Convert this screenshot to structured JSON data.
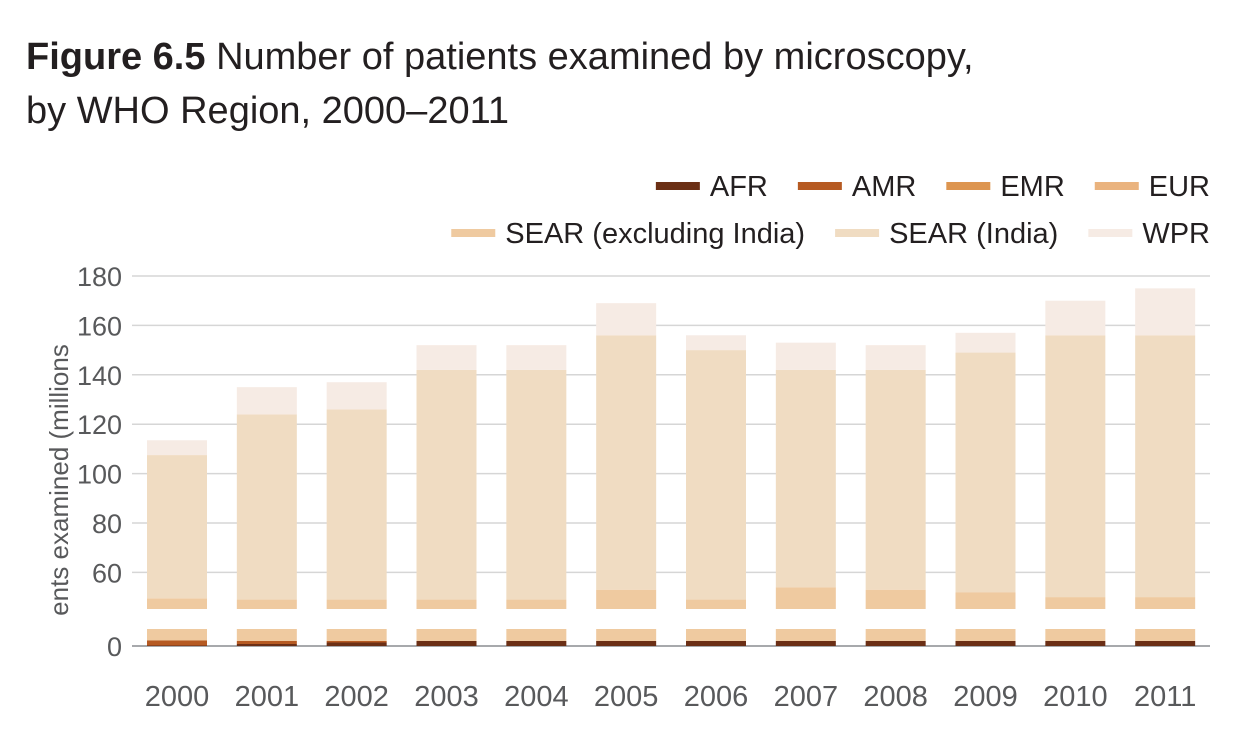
{
  "title": {
    "figure_label": "Figure 6.5",
    "line1": "Number of patients examined by microscopy,",
    "line2": "by WHO Region, 2000–2011"
  },
  "colors": {
    "AFR": "#6b2f15",
    "AMR": "#b65a22",
    "EMR": "#dd9550",
    "EUR": "#eab37e",
    "SEAR (excluding India)": "#efcaa0",
    "SEAR (India)": "#f0dcc2",
    "WPR": "#f6ebe4"
  },
  "chart_data": {
    "type": "bar",
    "stacked": true,
    "categories": [
      "2000",
      "2001",
      "2002",
      "2003",
      "2004",
      "2005",
      "2006",
      "2007",
      "2008",
      "2009",
      "2010",
      "2011"
    ],
    "ylabel": "ents examined (millions",
    "ylim": [
      0,
      180
    ],
    "y_ticks": [
      0,
      60,
      80,
      100,
      120,
      140,
      160,
      180
    ],
    "axis_break": true,
    "grid": true,
    "legend_position": "top-right",
    "series": [
      {
        "name": "AFR",
        "values": [
          0.5,
          2,
          3.5,
          5,
          5,
          5,
          5,
          5,
          5,
          5,
          5,
          5
        ]
      },
      {
        "name": "AMR",
        "values": [
          5,
          3,
          1.5,
          0,
          0,
          0,
          0,
          0,
          0,
          0,
          0,
          0
        ]
      },
      {
        "name": "EMR",
        "values": [
          0,
          0,
          0,
          0,
          0,
          0,
          0,
          0,
          0,
          0,
          0,
          0
        ]
      },
      {
        "name": "EUR",
        "values": [
          0,
          0,
          0,
          0,
          0,
          0,
          0,
          0,
          0,
          0,
          0,
          0
        ]
      },
      {
        "name": "SEAR (excluding India)",
        "values": [
          44,
          44,
          44,
          44,
          44,
          48,
          44,
          49,
          48,
          47,
          45,
          45
        ]
      },
      {
        "name": "SEAR (India)",
        "values": [
          58,
          75,
          77,
          93,
          93,
          103,
          101,
          88,
          89,
          97,
          106,
          106
        ]
      },
      {
        "name": "WPR",
        "values": [
          6,
          11,
          11,
          10,
          10,
          13,
          6,
          11,
          10,
          8,
          14,
          19
        ]
      }
    ]
  }
}
